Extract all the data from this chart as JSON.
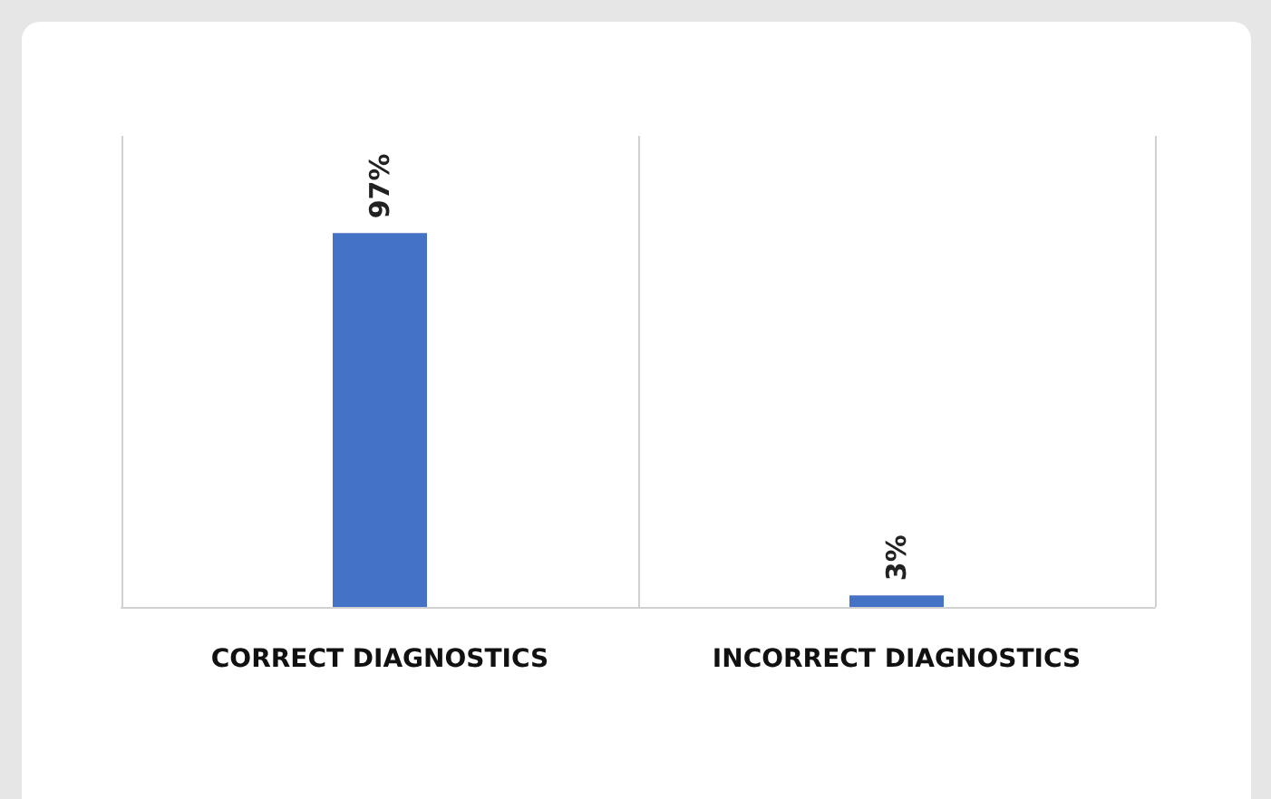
{
  "chart_data": {
    "type": "bar",
    "categories": [
      "CORRECT DIAGNOSTICS",
      "INCORRECT DIAGNOSTICS"
    ],
    "values": [
      97,
      3
    ],
    "color": "#4472c4",
    "value_labels": [
      "97%",
      "3%"
    ],
    "grid": "x"
  }
}
